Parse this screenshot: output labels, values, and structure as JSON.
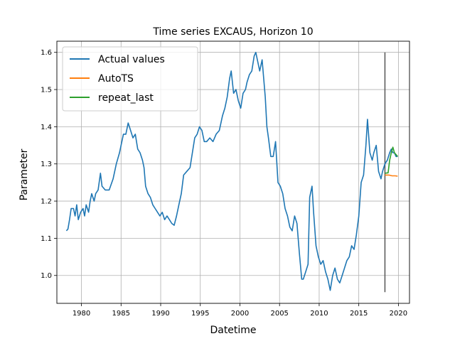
{
  "chart_data": {
    "type": "line",
    "title": "Time series EXCAUS, Horizon 10",
    "xlabel": "Datetime",
    "ylabel": "Parameter",
    "xlim": [
      1976.9,
      2021.4
    ],
    "ylim": [
      0.925,
      1.63
    ],
    "xticks": [
      1980,
      1985,
      1990,
      1995,
      2000,
      2005,
      2010,
      2015,
      2020
    ],
    "xtick_labels": [
      "1980",
      "1985",
      "1990",
      "1995",
      "2000",
      "2005",
      "2010",
      "2015",
      "2020"
    ],
    "yticks": [
      1.0,
      1.1,
      1.2,
      1.3,
      1.4,
      1.5,
      1.6
    ],
    "ytick_labels": [
      "1.0",
      "1.1",
      "1.2",
      "1.3",
      "1.4",
      "1.5",
      "1.6"
    ],
    "grid": true,
    "legend_position": "top-left",
    "series": [
      {
        "name": "Actual values",
        "color": "#1f77b4",
        "points": [
          [
            1978.1,
            1.12
          ],
          [
            1978.3,
            1.125
          ],
          [
            1978.5,
            1.15
          ],
          [
            1978.7,
            1.18
          ],
          [
            1979.0,
            1.18
          ],
          [
            1979.2,
            1.16
          ],
          [
            1979.4,
            1.19
          ],
          [
            1979.6,
            1.15
          ],
          [
            1979.9,
            1.17
          ],
          [
            1980.2,
            1.18
          ],
          [
            1980.4,
            1.16
          ],
          [
            1980.6,
            1.19
          ],
          [
            1980.9,
            1.17
          ],
          [
            1981.1,
            1.2
          ],
          [
            1981.3,
            1.22
          ],
          [
            1981.6,
            1.2
          ],
          [
            1981.8,
            1.22
          ],
          [
            1982.1,
            1.23
          ],
          [
            1982.4,
            1.275
          ],
          [
            1982.6,
            1.24
          ],
          [
            1983.0,
            1.23
          ],
          [
            1983.5,
            1.23
          ],
          [
            1984.0,
            1.26
          ],
          [
            1984.4,
            1.3
          ],
          [
            1984.8,
            1.33
          ],
          [
            1985.1,
            1.36
          ],
          [
            1985.3,
            1.38
          ],
          [
            1985.6,
            1.38
          ],
          [
            1985.9,
            1.41
          ],
          [
            1986.2,
            1.39
          ],
          [
            1986.5,
            1.37
          ],
          [
            1986.8,
            1.38
          ],
          [
            1987.1,
            1.34
          ],
          [
            1987.4,
            1.33
          ],
          [
            1987.7,
            1.31
          ],
          [
            1987.9,
            1.29
          ],
          [
            1988.1,
            1.24
          ],
          [
            1988.4,
            1.22
          ],
          [
            1988.7,
            1.21
          ],
          [
            1989.0,
            1.19
          ],
          [
            1989.3,
            1.18
          ],
          [
            1989.6,
            1.17
          ],
          [
            1989.9,
            1.16
          ],
          [
            1990.2,
            1.17
          ],
          [
            1990.5,
            1.15
          ],
          [
            1990.8,
            1.16
          ],
          [
            1991.1,
            1.15
          ],
          [
            1991.4,
            1.14
          ],
          [
            1991.7,
            1.135
          ],
          [
            1992.0,
            1.16
          ],
          [
            1992.3,
            1.19
          ],
          [
            1992.6,
            1.22
          ],
          [
            1992.9,
            1.27
          ],
          [
            1993.3,
            1.28
          ],
          [
            1993.7,
            1.29
          ],
          [
            1994.0,
            1.33
          ],
          [
            1994.3,
            1.37
          ],
          [
            1994.6,
            1.38
          ],
          [
            1994.9,
            1.4
          ],
          [
            1995.2,
            1.39
          ],
          [
            1995.5,
            1.36
          ],
          [
            1995.8,
            1.36
          ],
          [
            1996.2,
            1.37
          ],
          [
            1996.6,
            1.36
          ],
          [
            1997.0,
            1.38
          ],
          [
            1997.4,
            1.39
          ],
          [
            1997.8,
            1.43
          ],
          [
            1998.1,
            1.45
          ],
          [
            1998.4,
            1.48
          ],
          [
            1998.7,
            1.53
          ],
          [
            1998.9,
            1.55
          ],
          [
            1999.2,
            1.49
          ],
          [
            1999.5,
            1.5
          ],
          [
            1999.8,
            1.47
          ],
          [
            2000.1,
            1.45
          ],
          [
            2000.4,
            1.49
          ],
          [
            2000.7,
            1.5
          ],
          [
            2000.9,
            1.52
          ],
          [
            2001.2,
            1.54
          ],
          [
            2001.5,
            1.55
          ],
          [
            2001.8,
            1.59
          ],
          [
            2002.0,
            1.6
          ],
          [
            2002.2,
            1.58
          ],
          [
            2002.5,
            1.55
          ],
          [
            2002.8,
            1.58
          ],
          [
            2003.0,
            1.53
          ],
          [
            2003.2,
            1.48
          ],
          [
            2003.4,
            1.4
          ],
          [
            2003.6,
            1.37
          ],
          [
            2003.9,
            1.32
          ],
          [
            2004.2,
            1.32
          ],
          [
            2004.5,
            1.36
          ],
          [
            2004.8,
            1.25
          ],
          [
            2005.1,
            1.24
          ],
          [
            2005.4,
            1.22
          ],
          [
            2005.7,
            1.18
          ],
          [
            2006.0,
            1.16
          ],
          [
            2006.3,
            1.13
          ],
          [
            2006.6,
            1.12
          ],
          [
            2006.9,
            1.16
          ],
          [
            2007.2,
            1.14
          ],
          [
            2007.5,
            1.06
          ],
          [
            2007.8,
            0.99
          ],
          [
            2008.0,
            0.99
          ],
          [
            2008.3,
            1.01
          ],
          [
            2008.6,
            1.03
          ],
          [
            2008.8,
            1.21
          ],
          [
            2009.1,
            1.24
          ],
          [
            2009.3,
            1.17
          ],
          [
            2009.6,
            1.08
          ],
          [
            2009.9,
            1.05
          ],
          [
            2010.2,
            1.03
          ],
          [
            2010.5,
            1.04
          ],
          [
            2010.8,
            1.01
          ],
          [
            2011.1,
            0.99
          ],
          [
            2011.4,
            0.96
          ],
          [
            2011.7,
            1.0
          ],
          [
            2012.0,
            1.02
          ],
          [
            2012.3,
            0.99
          ],
          [
            2012.6,
            0.98
          ],
          [
            2012.9,
            1.0
          ],
          [
            2013.2,
            1.02
          ],
          [
            2013.5,
            1.04
          ],
          [
            2013.8,
            1.05
          ],
          [
            2014.1,
            1.08
          ],
          [
            2014.4,
            1.07
          ],
          [
            2014.7,
            1.11
          ],
          [
            2015.0,
            1.16
          ],
          [
            2015.3,
            1.25
          ],
          [
            2015.6,
            1.27
          ],
          [
            2015.9,
            1.35
          ],
          [
            2016.1,
            1.42
          ],
          [
            2016.4,
            1.33
          ],
          [
            2016.7,
            1.31
          ],
          [
            2016.9,
            1.33
          ],
          [
            2017.2,
            1.35
          ],
          [
            2017.5,
            1.28
          ],
          [
            2017.8,
            1.26
          ],
          [
            2018.0,
            1.28
          ],
          [
            2018.3,
            1.3
          ],
          [
            2018.6,
            1.31
          ],
          [
            2018.9,
            1.33
          ],
          [
            2019.1,
            1.34
          ],
          [
            2019.3,
            1.33
          ],
          [
            2019.5,
            1.33
          ],
          [
            2019.7,
            1.32
          ],
          [
            2019.9,
            1.32
          ]
        ]
      },
      {
        "name": "AutoTS",
        "color": "#ff7f0e",
        "points": [
          [
            2018.3,
            1.27
          ],
          [
            2018.8,
            1.27
          ],
          [
            2019.2,
            1.268
          ],
          [
            2019.6,
            1.268
          ],
          [
            2019.9,
            1.267
          ]
        ]
      },
      {
        "name": "repeat_last",
        "color": "#2ca02c",
        "points": [
          [
            2018.3,
            1.275
          ],
          [
            2018.7,
            1.276
          ],
          [
            2018.9,
            1.31
          ],
          [
            2019.1,
            1.33
          ],
          [
            2019.3,
            1.345
          ],
          [
            2019.5,
            1.33
          ],
          [
            2019.7,
            1.325
          ],
          [
            2019.9,
            1.32
          ]
        ]
      }
    ],
    "vertical_line": {
      "x": 2018.3,
      "y_range": [
        0.955,
        1.6
      ],
      "color": "#555555"
    }
  }
}
